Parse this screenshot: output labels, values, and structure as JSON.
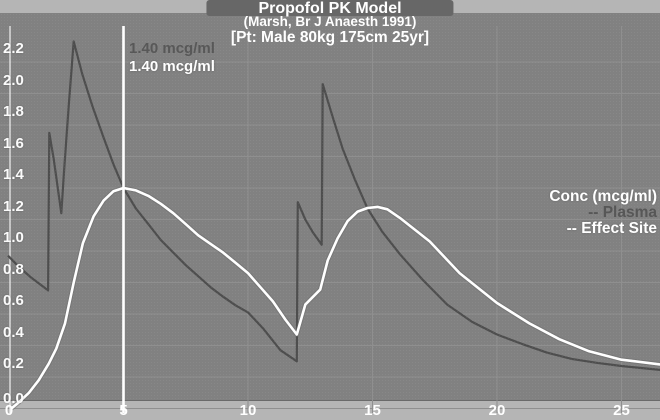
{
  "header": {
    "title": "Propofol PK Model",
    "subtitle": "(Marsh, Br J Anaesth 1991)",
    "patient_info": "[Pt: Male 80kg 175cm 25yr]"
  },
  "cursor": {
    "time_min": 5,
    "plasma_value_label": "1.40 mcg/ml",
    "effect_value_label": "1.40 mcg/ml"
  },
  "legend": {
    "title": "Conc (mcg/ml)",
    "items": [
      {
        "label": "-- Plasma",
        "color": "#575757"
      },
      {
        "label": "-- Effect Site",
        "color": "#ffffff"
      }
    ]
  },
  "colors": {
    "plot_background": "#818181",
    "band_background": "#b5b5b5",
    "title_box_background": "#676767",
    "gridline": "#8f8f8f",
    "axis_line": "#f2f2f2",
    "plasma_line": "#4e4e4e",
    "effect_line": "#ffffff",
    "cursor_line": "#ffffff"
  },
  "chart_data": {
    "type": "line",
    "title": "Propofol PK Model",
    "subtitle": "(Marsh, Br J Anaesth 1991)",
    "annotation": "[Pt: Male 80kg 175cm 25yr]",
    "x_ticks": [
      0,
      5,
      10,
      15,
      20,
      25
    ],
    "y_ticks": [
      "0.0",
      "0.2",
      "0.4",
      "0.6",
      "0.8",
      "1.0",
      "1.2",
      "1.4",
      "1.6",
      "1.8",
      "2.0",
      "2.2"
    ],
    "xlim": [
      0,
      26.6
    ],
    "ylim": [
      0,
      2.43
    ],
    "grid": true,
    "legend_position": "right",
    "cursor": {
      "time": 5,
      "plasma": 1.4,
      "effect_site": 1.4
    },
    "series": [
      {
        "name": "Plasma",
        "points": [
          [
            0.36,
            0.97
          ],
          [
            0.8,
            0.9
          ],
          [
            1.3,
            0.83
          ],
          [
            1.97,
            0.75
          ],
          [
            2.02,
            1.75
          ],
          [
            2.2,
            1.58
          ],
          [
            2.5,
            1.24
          ],
          [
            2.62,
            1.52
          ],
          [
            2.8,
            1.92
          ],
          [
            3.0,
            2.33
          ],
          [
            3.35,
            2.12
          ],
          [
            3.75,
            1.92
          ],
          [
            4.2,
            1.72
          ],
          [
            4.6,
            1.55
          ],
          [
            5.0,
            1.4
          ],
          [
            5.5,
            1.27
          ],
          [
            6.0,
            1.17
          ],
          [
            6.5,
            1.07
          ],
          [
            7.0,
            0.99
          ],
          [
            7.5,
            0.91
          ],
          [
            8.0,
            0.84
          ],
          [
            8.5,
            0.77
          ],
          [
            9.0,
            0.71
          ],
          [
            9.5,
            0.655
          ],
          [
            10.0,
            0.61
          ],
          [
            10.6,
            0.51
          ],
          [
            11.3,
            0.37
          ],
          [
            11.96,
            0.3
          ],
          [
            12.0,
            1.31
          ],
          [
            12.3,
            1.2
          ],
          [
            12.6,
            1.12
          ],
          [
            12.96,
            1.04
          ],
          [
            13.0,
            2.06
          ],
          [
            13.4,
            1.85
          ],
          [
            13.8,
            1.65
          ],
          [
            14.3,
            1.45
          ],
          [
            14.8,
            1.27
          ],
          [
            15.4,
            1.12
          ],
          [
            16.1,
            0.98
          ],
          [
            17.0,
            0.82
          ],
          [
            18.0,
            0.66
          ],
          [
            19.0,
            0.55
          ],
          [
            20.0,
            0.47
          ],
          [
            21.0,
            0.41
          ],
          [
            22.0,
            0.355
          ],
          [
            23.0,
            0.315
          ],
          [
            24.0,
            0.29
          ],
          [
            25.0,
            0.27
          ],
          [
            26.55,
            0.245
          ]
        ]
      },
      {
        "name": "Effect Site",
        "points": [
          [
            0.5,
            0.0
          ],
          [
            0.8,
            0.04
          ],
          [
            1.2,
            0.1
          ],
          [
            1.6,
            0.18
          ],
          [
            2.0,
            0.285
          ],
          [
            2.3,
            0.38
          ],
          [
            2.65,
            0.54
          ],
          [
            3.0,
            0.8
          ],
          [
            3.37,
            1.05
          ],
          [
            3.8,
            1.22
          ],
          [
            4.2,
            1.32
          ],
          [
            4.6,
            1.38
          ],
          [
            5.0,
            1.4
          ],
          [
            5.5,
            1.385
          ],
          [
            6.0,
            1.35
          ],
          [
            6.5,
            1.3
          ],
          [
            7.0,
            1.24
          ],
          [
            7.5,
            1.17
          ],
          [
            8.0,
            1.1
          ],
          [
            8.5,
            1.045
          ],
          [
            9.0,
            0.99
          ],
          [
            9.5,
            0.925
          ],
          [
            10.0,
            0.86
          ],
          [
            10.5,
            0.77
          ],
          [
            11.0,
            0.68
          ],
          [
            11.5,
            0.565
          ],
          [
            11.96,
            0.47
          ],
          [
            12.3,
            0.66
          ],
          [
            12.9,
            0.755
          ],
          [
            13.2,
            0.94
          ],
          [
            13.6,
            1.08
          ],
          [
            14.0,
            1.19
          ],
          [
            14.4,
            1.25
          ],
          [
            14.8,
            1.273
          ],
          [
            15.2,
            1.28
          ],
          [
            15.6,
            1.265
          ],
          [
            16.1,
            1.21
          ],
          [
            17.3,
            1.06
          ],
          [
            18.5,
            0.86
          ],
          [
            20.0,
            0.67
          ],
          [
            21.3,
            0.54
          ],
          [
            22.5,
            0.44
          ],
          [
            23.7,
            0.363
          ],
          [
            25.0,
            0.31
          ],
          [
            26.55,
            0.28
          ]
        ]
      }
    ]
  }
}
